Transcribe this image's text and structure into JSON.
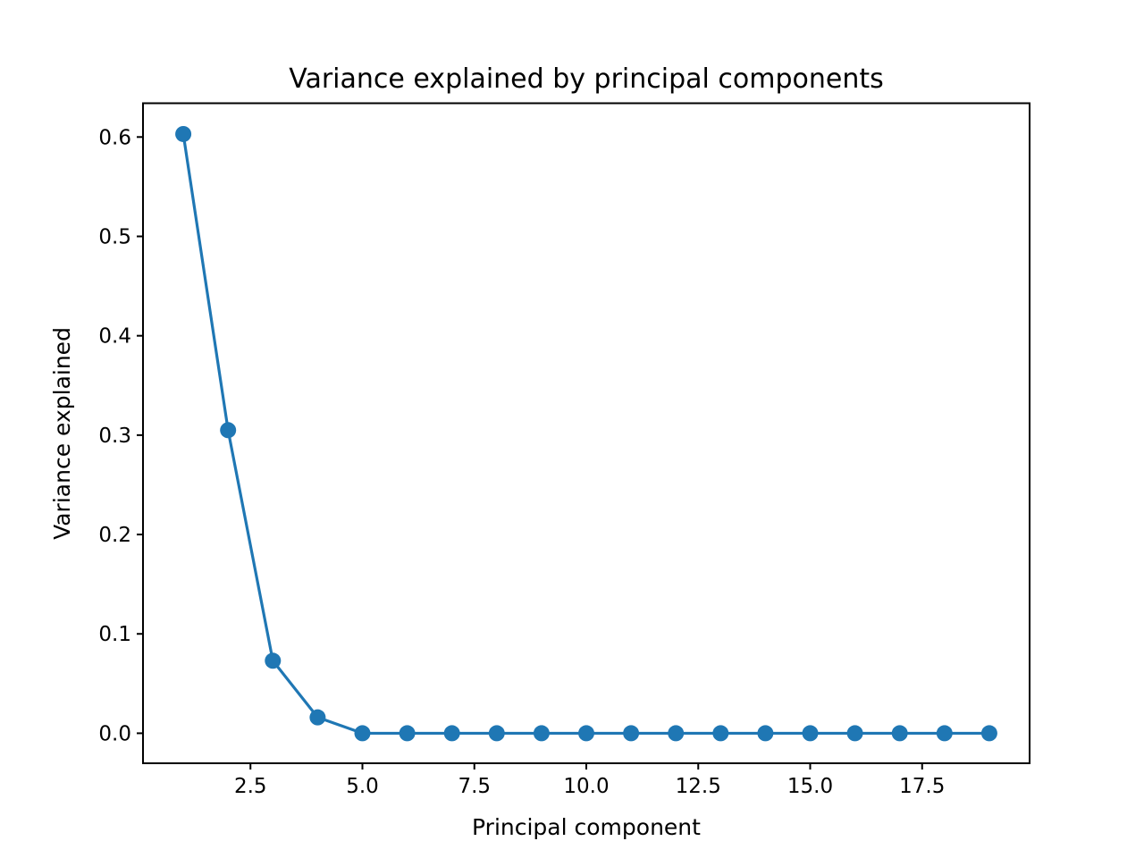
{
  "chart_data": {
    "type": "line",
    "title": "Variance explained by principal components",
    "xlabel": "Principal component",
    "ylabel": "Variance explained",
    "xlim": [
      0.1,
      19.9
    ],
    "ylim": [
      -0.0302,
      0.634
    ],
    "xticks": [
      2.5,
      5.0,
      7.5,
      10.0,
      12.5,
      15.0,
      17.5
    ],
    "xtick_labels": [
      "2.5",
      "5.0",
      "7.5",
      "10.0",
      "12.5",
      "15.0",
      "17.5"
    ],
    "yticks": [
      0.0,
      0.1,
      0.2,
      0.3,
      0.4,
      0.5,
      0.6
    ],
    "ytick_labels": [
      "0.0",
      "0.1",
      "0.2",
      "0.3",
      "0.4",
      "0.5",
      "0.6"
    ],
    "grid": false,
    "legend": "none",
    "color": "#1f77b4",
    "series": [
      {
        "marker": "o",
        "x": [
          1,
          2,
          3,
          4,
          5,
          6,
          7,
          8,
          9,
          10,
          11,
          12,
          13,
          14,
          15,
          16,
          17,
          18,
          19
        ],
        "y": [
          0.603,
          0.305,
          0.073,
          0.016,
          0.0,
          0.0,
          0.0,
          0.0,
          0.0,
          0.0,
          0.0,
          0.0,
          0.0,
          0.0,
          0.0,
          0.0,
          0.0,
          0.0,
          0.0
        ]
      }
    ]
  }
}
